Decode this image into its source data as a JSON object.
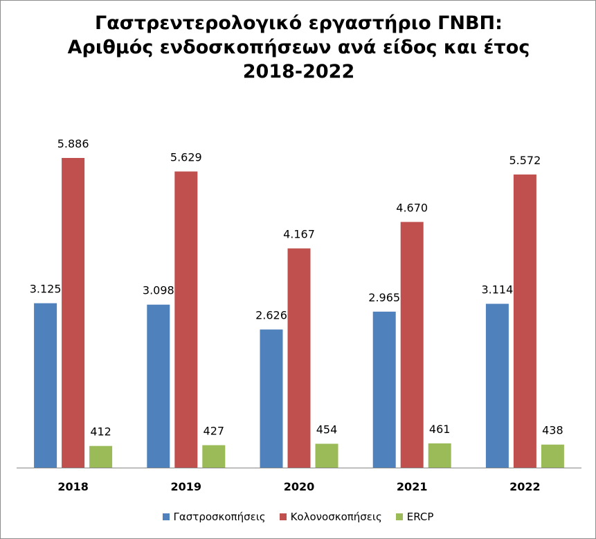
{
  "chart_data": {
    "type": "bar",
    "title": [
      "Γαστρεντερολογικό εργαστήριο ΓΝΒΠ:",
      "Αριθμός ενδοσκοπήσεων ανά είδος και έτος",
      "2018-2022"
    ],
    "categories": [
      "2018",
      "2019",
      "2020",
      "2021",
      "2022"
    ],
    "series": [
      {
        "name": "Γαστροσκοπήσεις",
        "color": "#4F81BD",
        "values": [
          3125,
          3098,
          2626,
          2965,
          3114
        ],
        "labels": [
          "3.125",
          "3.098",
          "2.626",
          "2.965",
          "3.114"
        ]
      },
      {
        "name": "Κολονοσκοπήσεις",
        "color": "#C0504D",
        "values": [
          5886,
          5629,
          4167,
          4670,
          5572
        ],
        "labels": [
          "5.886",
          "5.629",
          "4.167",
          "4.670",
          "5.572"
        ]
      },
      {
        "name": "ERCP",
        "color": "#9BBB59",
        "values": [
          412,
          427,
          454,
          461,
          438
        ],
        "labels": [
          "412",
          "427",
          "454",
          "461",
          "438"
        ]
      }
    ],
    "ylim": [
      0,
      6000
    ],
    "grid": false,
    "legend": "bottom"
  }
}
